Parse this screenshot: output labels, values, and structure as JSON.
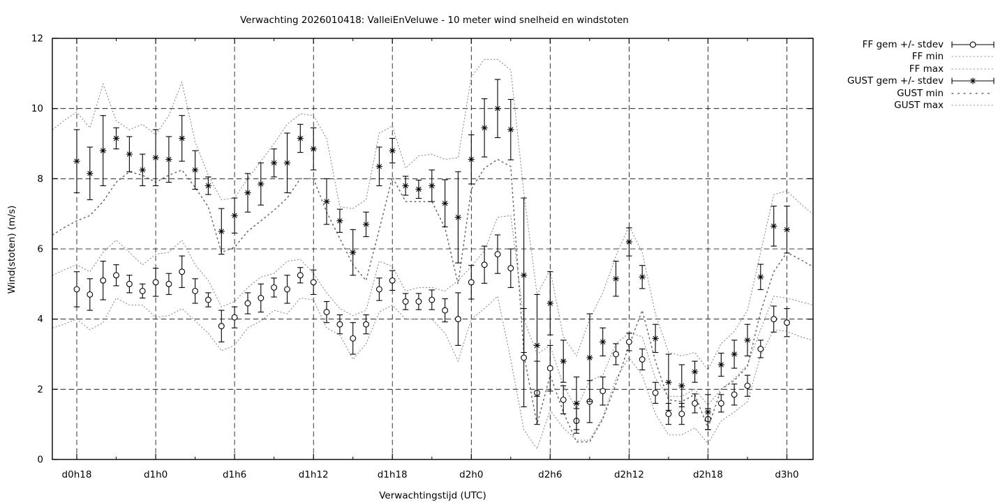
{
  "title": "Verwachting 2026010418: ValleiEnVeluwe - 10 meter wind snelheid en windstoten",
  "axes": {
    "xlabel": "Verwachtingstijd (UTC)",
    "ylabel": "Wind(stoten) (m/s)",
    "yticks": [
      0,
      2,
      4,
      6,
      8,
      10,
      12
    ],
    "ylim": [
      0,
      12
    ],
    "xticks": [
      {
        "hour": 0,
        "label": "d0h18"
      },
      {
        "hour": 6,
        "label": "d1h0"
      },
      {
        "hour": 12,
        "label": "d1h6"
      },
      {
        "hour": 18,
        "label": "d1h12"
      },
      {
        "hour": 24,
        "label": "d1h18"
      },
      {
        "hour": 30,
        "label": "d2h0"
      },
      {
        "hour": 36,
        "label": "d2h6"
      },
      {
        "hour": 42,
        "label": "d2h12"
      },
      {
        "hour": 48,
        "label": "d2h18"
      },
      {
        "hour": 54,
        "label": "d3h0"
      }
    ],
    "minor_xtick_every_hours": 3,
    "grid": "dashed"
  },
  "legend": {
    "position": "outside-top-right",
    "entries": [
      {
        "label": "FF gem +/- stdev",
        "style": "errorbar-circle"
      },
      {
        "label": "FF min",
        "style": "dot-fine"
      },
      {
        "label": "FF max",
        "style": "dot-fine"
      },
      {
        "label": "GUST gem +/- stdev",
        "style": "errorbar-star"
      },
      {
        "label": "GUST min",
        "style": "dot-coarse"
      },
      {
        "label": "GUST max",
        "style": "dot-fine"
      }
    ]
  },
  "colors": {
    "foreground": "#000000",
    "background": "#ffffff",
    "envelope_fine": "#8c8c8c",
    "envelope_coarse": "#666666"
  },
  "chart_data": {
    "type": "line",
    "subtype": "errorbar-series-with-min-max-envelopes",
    "x_unit": "hours from d0h18, hourly points",
    "n_points": 55,
    "series": [
      {
        "name": "FF gem +/- stdev",
        "marker": "circle",
        "mean": [
          4.85,
          4.7,
          5.1,
          5.25,
          5.0,
          4.8,
          5.05,
          5.0,
          5.35,
          4.8,
          4.55,
          3.8,
          4.05,
          4.45,
          4.6,
          4.9,
          4.85,
          5.25,
          5.05,
          4.2,
          3.85,
          3.45,
          3.85,
          4.85,
          5.1,
          4.5,
          4.5,
          4.55,
          4.25,
          4.0,
          5.05,
          5.55,
          5.85,
          5.45,
          2.9,
          1.9,
          2.6,
          1.7,
          1.1,
          1.65,
          1.95,
          3.0,
          3.35,
          2.85,
          1.9,
          1.3,
          1.3,
          1.6,
          1.15,
          1.6,
          1.85,
          2.1,
          3.15,
          4.0,
          3.9
        ],
        "stdev": [
          0.5,
          0.45,
          0.55,
          0.3,
          0.25,
          0.2,
          0.4,
          0.3,
          0.45,
          0.35,
          0.2,
          0.45,
          0.3,
          0.3,
          0.4,
          0.27,
          0.4,
          0.22,
          0.35,
          0.3,
          0.27,
          0.45,
          0.27,
          0.32,
          0.28,
          0.23,
          0.23,
          0.28,
          0.33,
          0.75,
          0.48,
          0.53,
          0.55,
          0.55,
          1.4,
          0.9,
          0.65,
          0.4,
          0.35,
          0.6,
          0.4,
          0.3,
          0.25,
          0.3,
          0.3,
          0.3,
          0.3,
          0.27,
          0.3,
          0.25,
          0.3,
          0.3,
          0.25,
          0.37,
          0.4
        ]
      },
      {
        "name": "GUST gem +/- stdev",
        "marker": "star",
        "mean": [
          8.5,
          8.15,
          8.8,
          9.15,
          8.7,
          8.25,
          8.6,
          8.55,
          9.15,
          8.25,
          7.8,
          6.5,
          6.95,
          7.6,
          7.85,
          8.45,
          8.45,
          9.15,
          8.85,
          7.35,
          6.8,
          5.9,
          6.7,
          8.35,
          8.8,
          7.8,
          7.7,
          7.8,
          7.3,
          6.9,
          8.55,
          9.45,
          10.0,
          9.4,
          5.25,
          3.25,
          4.45,
          2.8,
          1.6,
          2.9,
          3.35,
          5.15,
          6.2,
          5.2,
          3.45,
          2.2,
          2.1,
          2.5,
          1.35,
          2.7,
          3.0,
          3.4,
          5.2,
          6.65,
          6.55
        ],
        "stdev": [
          0.9,
          0.75,
          1.0,
          0.3,
          0.5,
          0.45,
          0.8,
          0.65,
          0.65,
          0.55,
          0.25,
          0.65,
          0.5,
          0.55,
          0.6,
          0.4,
          0.85,
          0.4,
          0.6,
          0.65,
          0.33,
          0.65,
          0.35,
          0.55,
          0.35,
          0.27,
          0.26,
          0.45,
          0.67,
          1.3,
          0.7,
          0.83,
          0.83,
          0.86,
          2.2,
          1.45,
          0.9,
          0.6,
          0.75,
          1.25,
          0.4,
          0.5,
          0.4,
          0.33,
          0.4,
          0.8,
          0.6,
          0.3,
          0.5,
          0.33,
          0.4,
          0.45,
          0.36,
          0.57,
          0.67
        ]
      }
    ],
    "envelopes": {
      "x_offset_hours": -2,
      "n_points": 59,
      "ff_min": [
        3.75,
        3.85,
        4.0,
        3.7,
        3.9,
        4.6,
        4.4,
        4.4,
        4.05,
        4.1,
        4.3,
        3.95,
        3.6,
        3.1,
        3.25,
        3.75,
        3.95,
        4.25,
        4.15,
        4.6,
        4.55,
        3.75,
        3.55,
        2.85,
        3.3,
        4.2,
        4.4,
        4.0,
        4.0,
        4.0,
        3.6,
        2.8,
        4.0,
        4.3,
        4.65,
        2.85,
        0.85,
        0.3,
        1.4,
        0.9,
        0.55,
        0.55,
        1.2,
        2.3,
        2.9,
        2.4,
        1.3,
        0.7,
        0.7,
        0.9,
        0.45,
        1.1,
        1.35,
        1.65,
        2.95,
        3.7,
        3.65,
        3.5,
        3.4
      ],
      "ff_max": [
        5.25,
        5.4,
        5.55,
        5.35,
        5.9,
        6.25,
        5.9,
        5.55,
        5.85,
        5.9,
        6.25,
        5.55,
        5.1,
        4.35,
        4.5,
        4.9,
        5.2,
        5.3,
        5.65,
        5.7,
        5.3,
        4.75,
        4.3,
        4.1,
        4.25,
        5.65,
        5.5,
        4.8,
        4.9,
        4.9,
        4.8,
        5.1,
        5.5,
        5.95,
        6.9,
        6.95,
        4.0,
        3.0,
        3.25,
        2.1,
        1.45,
        2.25,
        2.4,
        3.3,
        3.6,
        3.5,
        2.3,
        1.8,
        1.8,
        2.0,
        1.55,
        2.0,
        2.3,
        2.7,
        3.7,
        4.65,
        4.6,
        4.5,
        4.4
      ],
      "gust_min": [
        6.4,
        6.6,
        6.8,
        6.95,
        7.35,
        7.9,
        8.2,
        8.1,
        7.9,
        8.1,
        8.25,
        7.75,
        7.2,
        5.9,
        6.05,
        6.5,
        6.8,
        7.1,
        7.45,
        8.0,
        8.0,
        7.05,
        6.3,
        5.55,
        5.1,
        6.55,
        8.05,
        7.35,
        7.35,
        7.35,
        6.6,
        5.0,
        7.7,
        8.3,
        8.55,
        8.35,
        3.0,
        1.0,
        2.4,
        1.35,
        0.5,
        0.5,
        1.15,
        2.15,
        3.25,
        4.25,
        2.8,
        1.7,
        1.65,
        1.85,
        0.9,
        2.0,
        2.25,
        2.65,
        4.2,
        5.35,
        5.9,
        5.7,
        5.5
      ],
      "gust_max": [
        9.4,
        9.65,
        9.9,
        9.45,
        10.7,
        9.65,
        9.4,
        9.55,
        9.25,
        9.8,
        10.75,
        9.05,
        8.1,
        7.4,
        7.45,
        8.0,
        8.5,
        9.0,
        9.55,
        9.85,
        9.8,
        9.15,
        7.2,
        7.15,
        7.4,
        9.3,
        9.5,
        8.3,
        8.65,
        8.7,
        8.55,
        8.6,
        10.9,
        11.4,
        11.4,
        11.1,
        7.6,
        4.7,
        5.4,
        3.5,
        2.95,
        4.0,
        4.75,
        5.8,
        6.65,
        5.9,
        4.15,
        3.05,
        2.95,
        3.05,
        2.55,
        3.3,
        3.65,
        4.25,
        5.9,
        7.55,
        7.65,
        7.3,
        7.0
      ]
    }
  }
}
